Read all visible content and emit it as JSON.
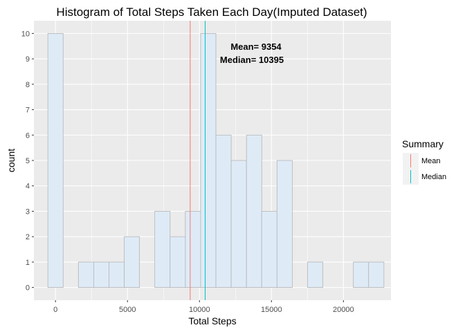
{
  "chart_data": {
    "type": "bar",
    "title": "Histogram of Total Steps Taken Each Day(Imputed Dataset)",
    "xlabel": "Total Steps",
    "ylabel": "count",
    "bin_width": 1061,
    "bins": [
      {
        "x": 0,
        "count": 10
      },
      {
        "x": 2122,
        "count": 1
      },
      {
        "x": 3183,
        "count": 1
      },
      {
        "x": 4244,
        "count": 1
      },
      {
        "x": 5305,
        "count": 2
      },
      {
        "x": 7427,
        "count": 3
      },
      {
        "x": 8488,
        "count": 2
      },
      {
        "x": 9549,
        "count": 3
      },
      {
        "x": 10610,
        "count": 10
      },
      {
        "x": 11671,
        "count": 6
      },
      {
        "x": 12732,
        "count": 5
      },
      {
        "x": 13793,
        "count": 6
      },
      {
        "x": 14854,
        "count": 3
      },
      {
        "x": 15915,
        "count": 5
      },
      {
        "x": 18037,
        "count": 1
      },
      {
        "x": 21220,
        "count": 1
      },
      {
        "x": 22281,
        "count": 1
      }
    ],
    "x_ticks": [
      0,
      5000,
      10000,
      15000,
      20000
    ],
    "x_tick_labels": [
      "0",
      "5000",
      "10000",
      "15000",
      "20000"
    ],
    "y_ticks": [
      0,
      1,
      2,
      3,
      4,
      5,
      6,
      7,
      8,
      9,
      10
    ],
    "y_tick_labels": [
      "0",
      "1",
      "2",
      "3",
      "4",
      "5",
      "6",
      "7",
      "8",
      "9",
      "10"
    ],
    "xlim": [
      -1500,
      23300
    ],
    "ylim": [
      -0.5,
      10.5
    ],
    "grid": true,
    "reference_lines": [
      {
        "name": "Mean",
        "value": 9354,
        "color": "#F8766D"
      },
      {
        "name": "Median",
        "value": 10395,
        "color": "#00BFC4"
      }
    ],
    "annotations": [
      "Mean= 9354",
      "Median= 10395"
    ],
    "legend": {
      "title": "Summary",
      "position": "right",
      "entries": [
        "Mean",
        "Median"
      ]
    },
    "colors": {
      "panel": "#EBEBEB",
      "grid": "#FFFFFF",
      "bar_fill": "#DEEBF7",
      "bar_stroke": "#B4B4B4"
    }
  }
}
